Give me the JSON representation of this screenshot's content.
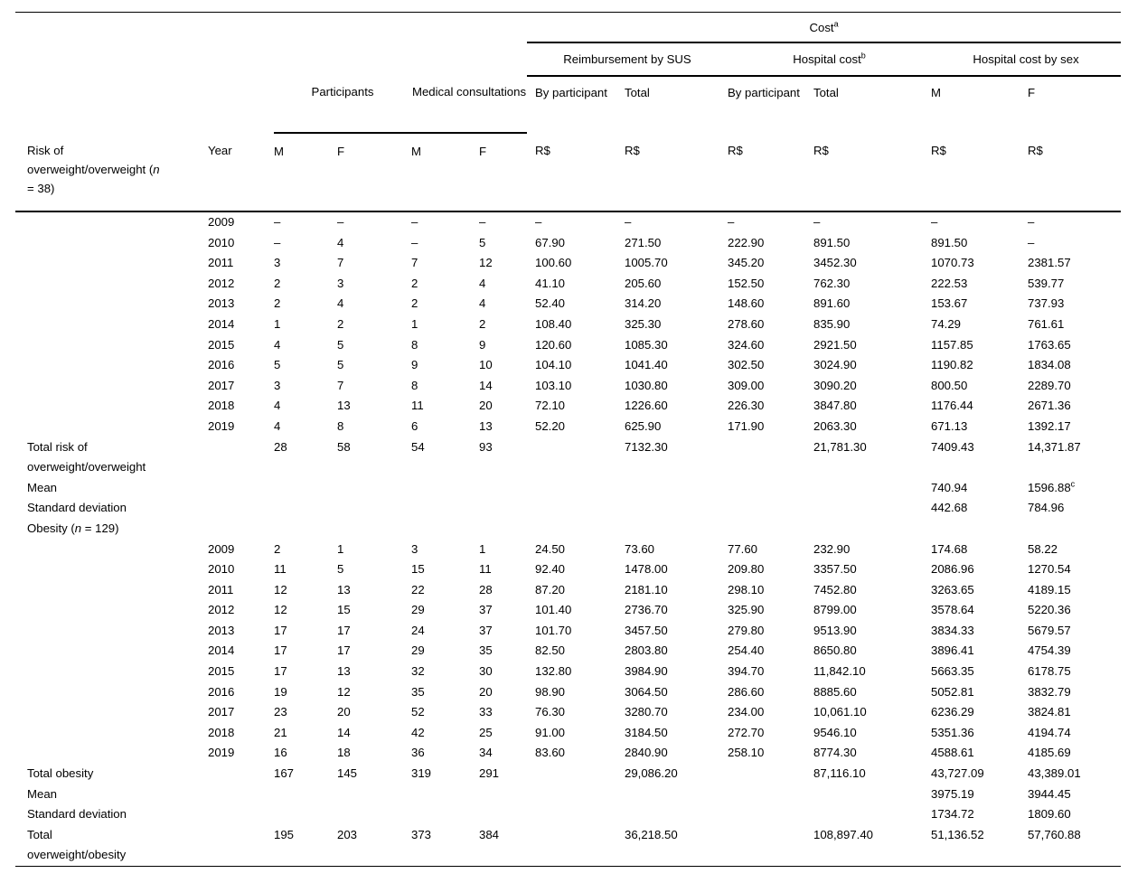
{
  "table": {
    "header": {
      "cost": "Cost",
      "cost_sup": "a",
      "reimbursement_by_sus": "Reimbursement by SUS",
      "hospital_cost": "Hospital cost",
      "hospital_cost_sup": "b",
      "hospital_cost_by_sex": "Hospital cost by sex",
      "participants": "Participants",
      "medical_consultations": "Medical consultations",
      "by_participant": "By participant",
      "total": "Total",
      "m": "M",
      "f": "F",
      "currency": "R$",
      "year": "Year",
      "risk_line1": "Risk of",
      "risk_line2_pre": "overweight/overweight (",
      "risk_n": "n",
      "risk_line3": "= 38)"
    },
    "rows": [
      {
        "y": "2009",
        "c": [
          "–",
          "–",
          "–",
          "–",
          "–",
          "–",
          "–",
          "–",
          "–",
          "–"
        ]
      },
      {
        "y": "2010",
        "c": [
          "–",
          "4",
          "–",
          "5",
          "67.90",
          "271.50",
          "222.90",
          "891.50",
          "891.50",
          "–"
        ]
      },
      {
        "y": "2011",
        "c": [
          "3",
          "7",
          "7",
          "12",
          "100.60",
          "1005.70",
          "345.20",
          "3452.30",
          "1070.73",
          "2381.57"
        ]
      },
      {
        "y": "2012",
        "c": [
          "2",
          "3",
          "2",
          "4",
          "41.10",
          "205.60",
          "152.50",
          "762.30",
          "222.53",
          "539.77"
        ]
      },
      {
        "y": "2013",
        "c": [
          "2",
          "4",
          "2",
          "4",
          "52.40",
          "314.20",
          "148.60",
          "891.60",
          "153.67",
          "737.93"
        ]
      },
      {
        "y": "2014",
        "c": [
          "1",
          "2",
          "1",
          "2",
          "108.40",
          "325.30",
          "278.60",
          "835.90",
          "74.29",
          "761.61"
        ]
      },
      {
        "y": "2015",
        "c": [
          "4",
          "5",
          "8",
          "9",
          "120.60",
          "1085.30",
          "324.60",
          "2921.50",
          "1157.85",
          "1763.65"
        ]
      },
      {
        "y": "2016",
        "c": [
          "5",
          "5",
          "9",
          "10",
          "104.10",
          "1041.40",
          "302.50",
          "3024.90",
          "1190.82",
          "1834.08"
        ]
      },
      {
        "y": "2017",
        "c": [
          "3",
          "7",
          "8",
          "14",
          "103.10",
          "1030.80",
          "309.00",
          "3090.20",
          "800.50",
          "2289.70"
        ]
      },
      {
        "y": "2018",
        "c": [
          "4",
          "13",
          "11",
          "20",
          "72.10",
          "1226.60",
          "226.30",
          "3847.80",
          "1176.44",
          "2671.36"
        ]
      },
      {
        "y": "2019",
        "c": [
          "4",
          "8",
          "6",
          "13",
          "52.20",
          "625.90",
          "171.90",
          "2063.30",
          "671.13",
          "1392.17"
        ]
      },
      {
        "label": [
          "Total risk of",
          "overweight/overweight"
        ],
        "c": [
          "28",
          "58",
          "54",
          "93",
          "",
          "7132.30",
          "",
          "21,781.30",
          "7409.43",
          "14,371.87"
        ]
      },
      {
        "label": [
          "Mean"
        ],
        "c": [
          "",
          "",
          "",
          "",
          "",
          "",
          "",
          "",
          "740.94",
          {
            "t": "1596.88",
            "sup": "c"
          }
        ]
      },
      {
        "label": [
          "Standard deviation"
        ],
        "c": [
          "",
          "",
          "",
          "",
          "",
          "",
          "",
          "",
          "442.68",
          "784.96"
        ]
      },
      {
        "label": [
          [
            {
              "t": "Obesity ("
            },
            {
              "t": "n",
              "i": true
            },
            {
              "t": " = 129)"
            }
          ]
        ],
        "c": [
          "",
          "",
          "",
          "",
          "",
          "",
          "",
          "",
          "",
          ""
        ]
      },
      {
        "y": "2009",
        "c": [
          "2",
          "1",
          "3",
          "1",
          "24.50",
          "73.60",
          "77.60",
          "232.90",
          "174.68",
          "58.22"
        ]
      },
      {
        "y": "2010",
        "c": [
          "11",
          "5",
          "15",
          "11",
          "92.40",
          "1478.00",
          "209.80",
          "3357.50",
          "2086.96",
          "1270.54"
        ]
      },
      {
        "y": "2011",
        "c": [
          "12",
          "13",
          "22",
          "28",
          "87.20",
          "2181.10",
          "298.10",
          "7452.80",
          "3263.65",
          "4189.15"
        ]
      },
      {
        "y": "2012",
        "c": [
          "12",
          "15",
          "29",
          "37",
          "101.40",
          "2736.70",
          "325.90",
          "8799.00",
          "3578.64",
          "5220.36"
        ]
      },
      {
        "y": "2013",
        "c": [
          "17",
          "17",
          "24",
          "37",
          "101.70",
          "3457.50",
          "279.80",
          "9513.90",
          "3834.33",
          "5679.57"
        ]
      },
      {
        "y": "2014",
        "c": [
          "17",
          "17",
          "29",
          "35",
          "82.50",
          "2803.80",
          "254.40",
          "8650.80",
          "3896.41",
          "4754.39"
        ]
      },
      {
        "y": "2015",
        "c": [
          "17",
          "13",
          "32",
          "30",
          "132.80",
          "3984.90",
          "394.70",
          "11,842.10",
          "5663.35",
          "6178.75"
        ]
      },
      {
        "y": "2016",
        "c": [
          "19",
          "12",
          "35",
          "20",
          "98.90",
          "3064.50",
          "286.60",
          "8885.60",
          "5052.81",
          "3832.79"
        ]
      },
      {
        "y": "2017",
        "c": [
          "23",
          "20",
          "52",
          "33",
          "76.30",
          "3280.70",
          "234.00",
          "10,061.10",
          "6236.29",
          "3824.81"
        ]
      },
      {
        "y": "2018",
        "c": [
          "21",
          "14",
          "42",
          "25",
          "91.00",
          "3184.50",
          "272.70",
          "9546.10",
          "5351.36",
          "4194.74"
        ]
      },
      {
        "y": "2019",
        "c": [
          "16",
          "18",
          "36",
          "34",
          "83.60",
          "2840.90",
          "258.10",
          "8774.30",
          "4588.61",
          "4185.69"
        ]
      },
      {
        "label": [
          "Total obesity"
        ],
        "c": [
          "167",
          "145",
          "319",
          "291",
          "",
          "29,086.20",
          "",
          "87,116.10",
          "43,727.09",
          "43,389.01"
        ]
      },
      {
        "label": [
          "Mean"
        ],
        "c": [
          "",
          "",
          "",
          "",
          "",
          "",
          "",
          "",
          "3975.19",
          "3944.45"
        ]
      },
      {
        "label": [
          "Standard deviation"
        ],
        "c": [
          "",
          "",
          "",
          "",
          "",
          "",
          "",
          "",
          "1734.72",
          "1809.60"
        ]
      },
      {
        "label": [
          "Total",
          "overweight/obesity"
        ],
        "c": [
          "195",
          "203",
          "373",
          "384",
          "",
          "36,218.50",
          "",
          "108,897.40",
          "51,136.52",
          "57,760.88"
        ]
      }
    ]
  }
}
